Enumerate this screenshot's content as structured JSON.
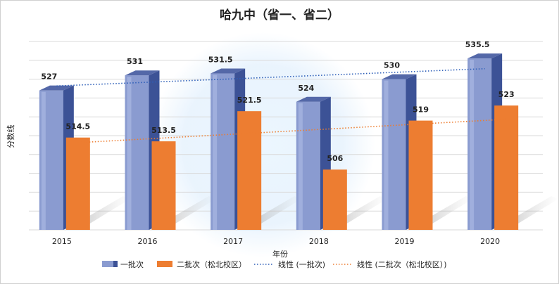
{
  "chart_data": {
    "type": "bar",
    "title": "哈九中（省一、省二）",
    "xlabel": "年份",
    "ylabel": "分数线",
    "categories": [
      "2015",
      "2016",
      "2017",
      "2018",
      "2019",
      "2020"
    ],
    "series": [
      {
        "name": "一批次",
        "values": [
          527,
          531,
          531.5,
          524,
          530,
          535.5
        ],
        "color": "#6b80be"
      },
      {
        "name": "二批次（松北校区）",
        "values": [
          514.5,
          513.5,
          521.5,
          506,
          519,
          523
        ],
        "color": "#ed7d31"
      }
    ],
    "trendlines": [
      {
        "name": "线性 (一批次)",
        "series": 0,
        "color": "#2e5fb8",
        "style": "dotted"
      },
      {
        "name": "线性 (二批次（松北校区）)",
        "series": 1,
        "color": "#ed7d31",
        "style": "dotted"
      }
    ],
    "value_labels": {
      "s0": [
        "527",
        "531",
        "531.5",
        "524",
        "530",
        "535.5"
      ],
      "s1": [
        "514.5",
        "513.5",
        "521.5",
        "506",
        "519",
        "523"
      ]
    },
    "ylim": [
      490,
      540
    ],
    "y_tick_step": 5,
    "grid": true,
    "y_tick_labels_shown": false,
    "legend_position": "bottom"
  }
}
